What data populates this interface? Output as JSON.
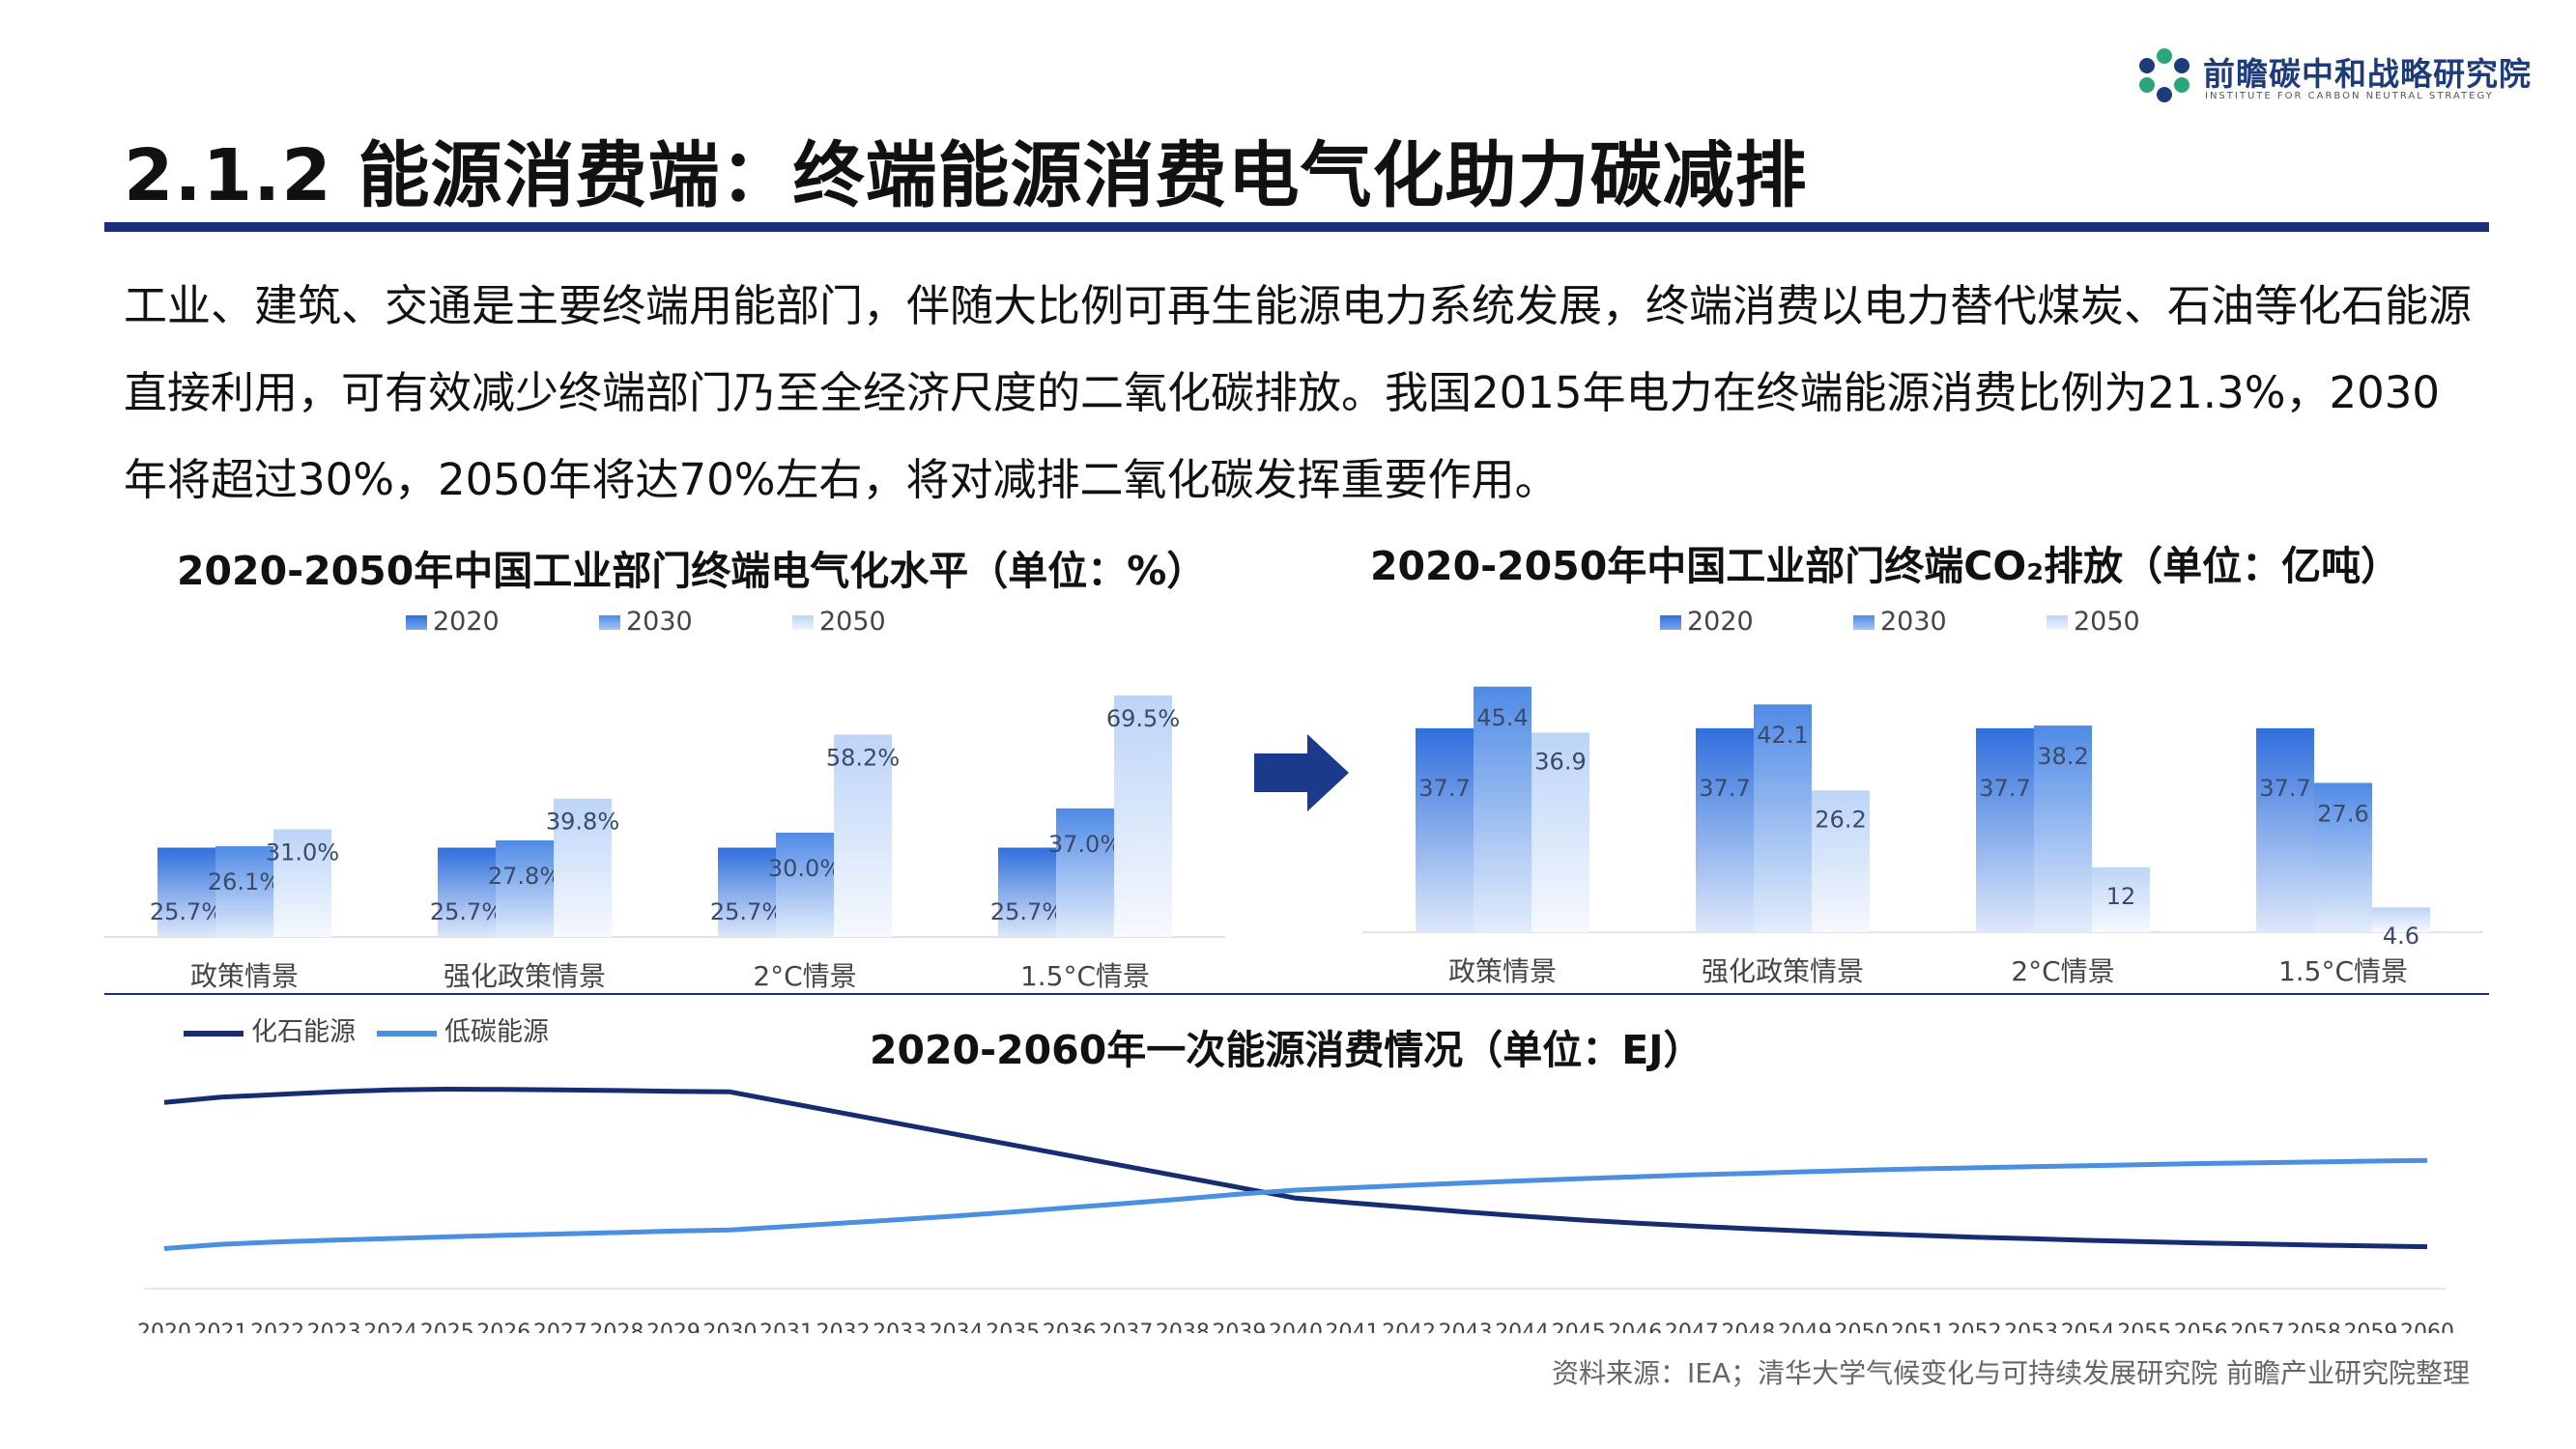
{
  "logo": {
    "name": "前瞻碳中和战略研究院",
    "subtitle": "INSTITUTE FOR CARBON NEUTRAL STRATEGY",
    "icon": "hexagon-logo-icon",
    "color": "#1e3c7a",
    "accent": "#2aa67a"
  },
  "page": {
    "title": "2.1.2 能源消费端：终端能源消费电气化助力碳减排",
    "intro": "工业、建筑、交通是主要终端用能部门，伴随大比例可再生能源电力系统发展，终端消费以电力替代煤炭、石油等化石能源直接利用，可有效减少终端部门乃至全经济尺度的二氧化碳排放。我国2015年电力在终端能源消费比例为21.3%，2030年将超过30%，2050年将达70%左右，将对减排二氧化碳发挥重要作用。",
    "source": "资料来源：IEA；清华大学气候变化与可持续发展研究院 前瞻产业研究院整理",
    "arrow_icon": "right-arrow-icon"
  },
  "colors": {
    "c2020": "#2f6fdc",
    "c2030": "#4f8ae6",
    "c2050": "#bcd4f7",
    "fossil": "#182c74",
    "lowcarbon": "#4a8fe0",
    "rule": "#1b2f80"
  },
  "chart_data": [
    {
      "type": "bar",
      "title": "2020-2050年中国工业部门终端电气化水平（单位：%）",
      "categories": [
        "政策情景",
        "强化政策情景",
        "2°C情景",
        "1.5°C情景"
      ],
      "series": [
        {
          "name": "2020",
          "values": [
            25.7,
            25.7,
            25.7,
            25.7
          ]
        },
        {
          "name": "2030",
          "values": [
            26.1,
            27.8,
            30.0,
            37.0
          ]
        },
        {
          "name": "2050",
          "values": [
            31.0,
            39.8,
            58.2,
            69.5
          ]
        }
      ],
      "labels": [
        [
          "25.7%",
          "26.1%",
          "31.0%"
        ],
        [
          "25.7%",
          "27.8%",
          "39.8%"
        ],
        [
          "25.7%",
          "30.0%",
          "58.2%"
        ],
        [
          "25.7%",
          "37.0%",
          "69.5%"
        ]
      ],
      "legend_position": "top-center"
    },
    {
      "type": "bar",
      "title": "2020-2050年中国工业部门终端CO₂排放（单位：亿吨）",
      "categories": [
        "政策情景",
        "强化政策情景",
        "2°C情景",
        "1.5°C情景"
      ],
      "series": [
        {
          "name": "2020",
          "values": [
            37.7,
            37.7,
            37.7,
            37.7
          ]
        },
        {
          "name": "2030",
          "values": [
            45.4,
            42.1,
            38.2,
            27.6
          ]
        },
        {
          "name": "2050",
          "values": [
            36.9,
            26.2,
            12,
            4.6
          ]
        }
      ],
      "labels": [
        [
          "37.7",
          "45.4",
          "36.9"
        ],
        [
          "37.7",
          "42.1",
          "26.2"
        ],
        [
          "37.7",
          "38.2",
          "12"
        ],
        [
          "37.7",
          "27.6",
          "4.6"
        ]
      ],
      "legend_position": "top-center"
    },
    {
      "type": "line",
      "title": "2020-2060年一次能源消费情况（单位：EJ）",
      "x": [
        2020,
        2021,
        2022,
        2023,
        2024,
        2025,
        2026,
        2027,
        2028,
        2029,
        2030,
        2031,
        2032,
        2033,
        2034,
        2035,
        2036,
        2037,
        2038,
        2039,
        2040,
        2041,
        2042,
        2043,
        2044,
        2045,
        2046,
        2047,
        2048,
        2049,
        2050,
        2051,
        2052,
        2053,
        2054,
        2055,
        2056,
        2057,
        2058,
        2059,
        2060
      ],
      "series": [
        {
          "name": "化石能源",
          "values": [
            125,
            127,
            128,
            129,
            129.7,
            130,
            129.9,
            129.7,
            129.5,
            129.2,
            129,
            125,
            121,
            117,
            113,
            109,
            105,
            101,
            97,
            93,
            89,
            87.2,
            85.5,
            83.8,
            82.2,
            80.8,
            79.6,
            78.5,
            77.5,
            76.6,
            75.7,
            75,
            74.3,
            73.7,
            73.1,
            72.6,
            72.1,
            71.7,
            71.3,
            71,
            70.7
          ]
        },
        {
          "name": "低碳能源",
          "values": [
            70,
            71.6,
            72.5,
            73.2,
            73.8,
            74.4,
            75,
            75.5,
            76,
            76.6,
            77,
            78.3,
            79.6,
            80.9,
            82.3,
            83.8,
            85.4,
            87,
            88.7,
            90.5,
            92,
            92.9,
            93.8,
            94.7,
            95.5,
            96.3,
            97,
            97.7,
            98.3,
            98.9,
            99.5,
            100,
            100.4,
            100.8,
            101.2,
            101.6,
            102,
            102.3,
            102.6,
            102.9,
            103.2
          ]
        }
      ],
      "legend_position": "top-left",
      "ylim": [
        60,
        140
      ]
    }
  ]
}
